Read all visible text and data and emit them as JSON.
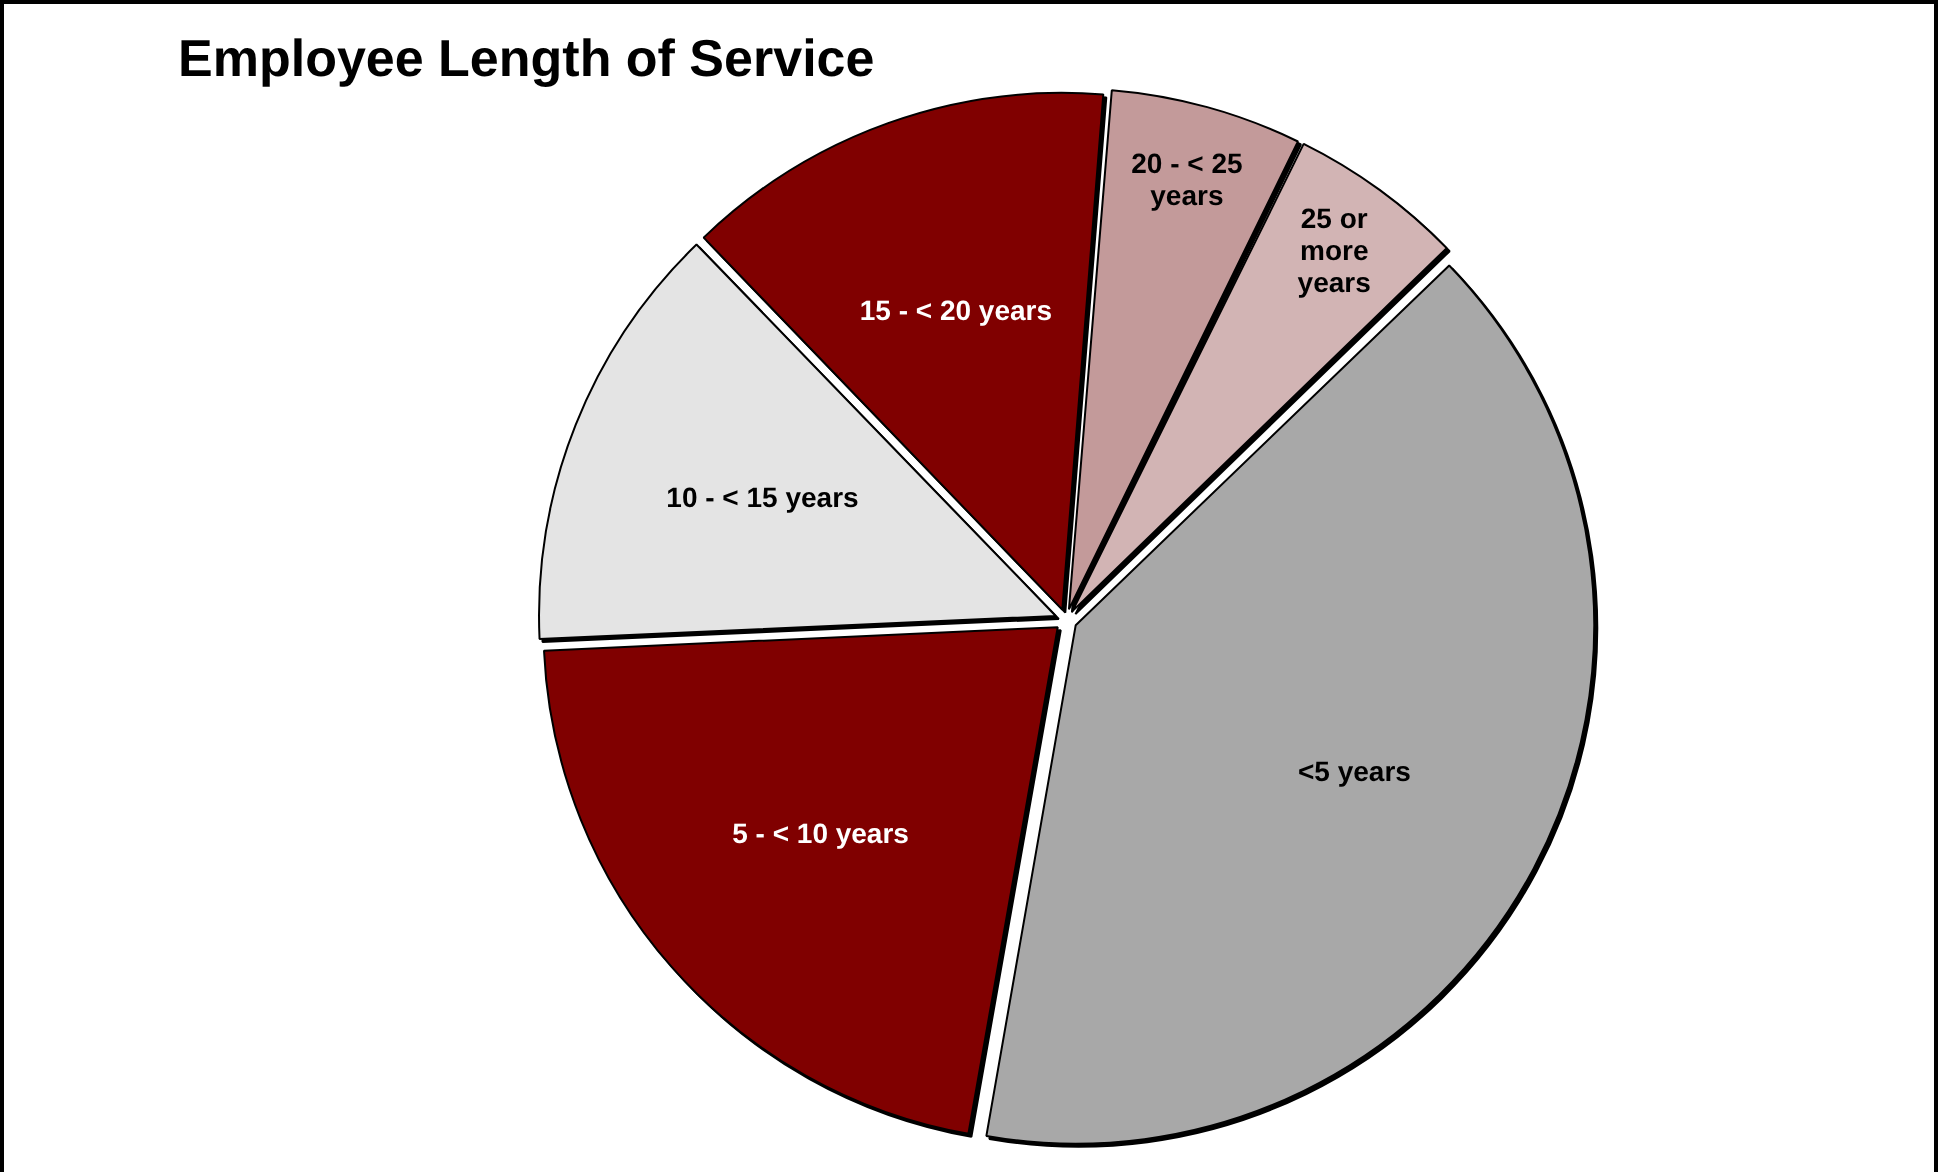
{
  "chart_data": {
    "type": "pie",
    "title": "Employee Length of Service",
    "categories": [
      "<5 years",
      "5 - < 10 years",
      "10 - < 15 years",
      "15 - < 20 years",
      "20 - < 25 years",
      "25 or more years"
    ],
    "values": [
      40,
      21.5,
      13.5,
      13.5,
      6,
      5.5
    ],
    "colors": [
      "#a8a8a8",
      "#800000",
      "#e4e4e4",
      "#800000",
      "#c39a9a",
      "#d2b4b4"
    ],
    "legend": false
  }
}
